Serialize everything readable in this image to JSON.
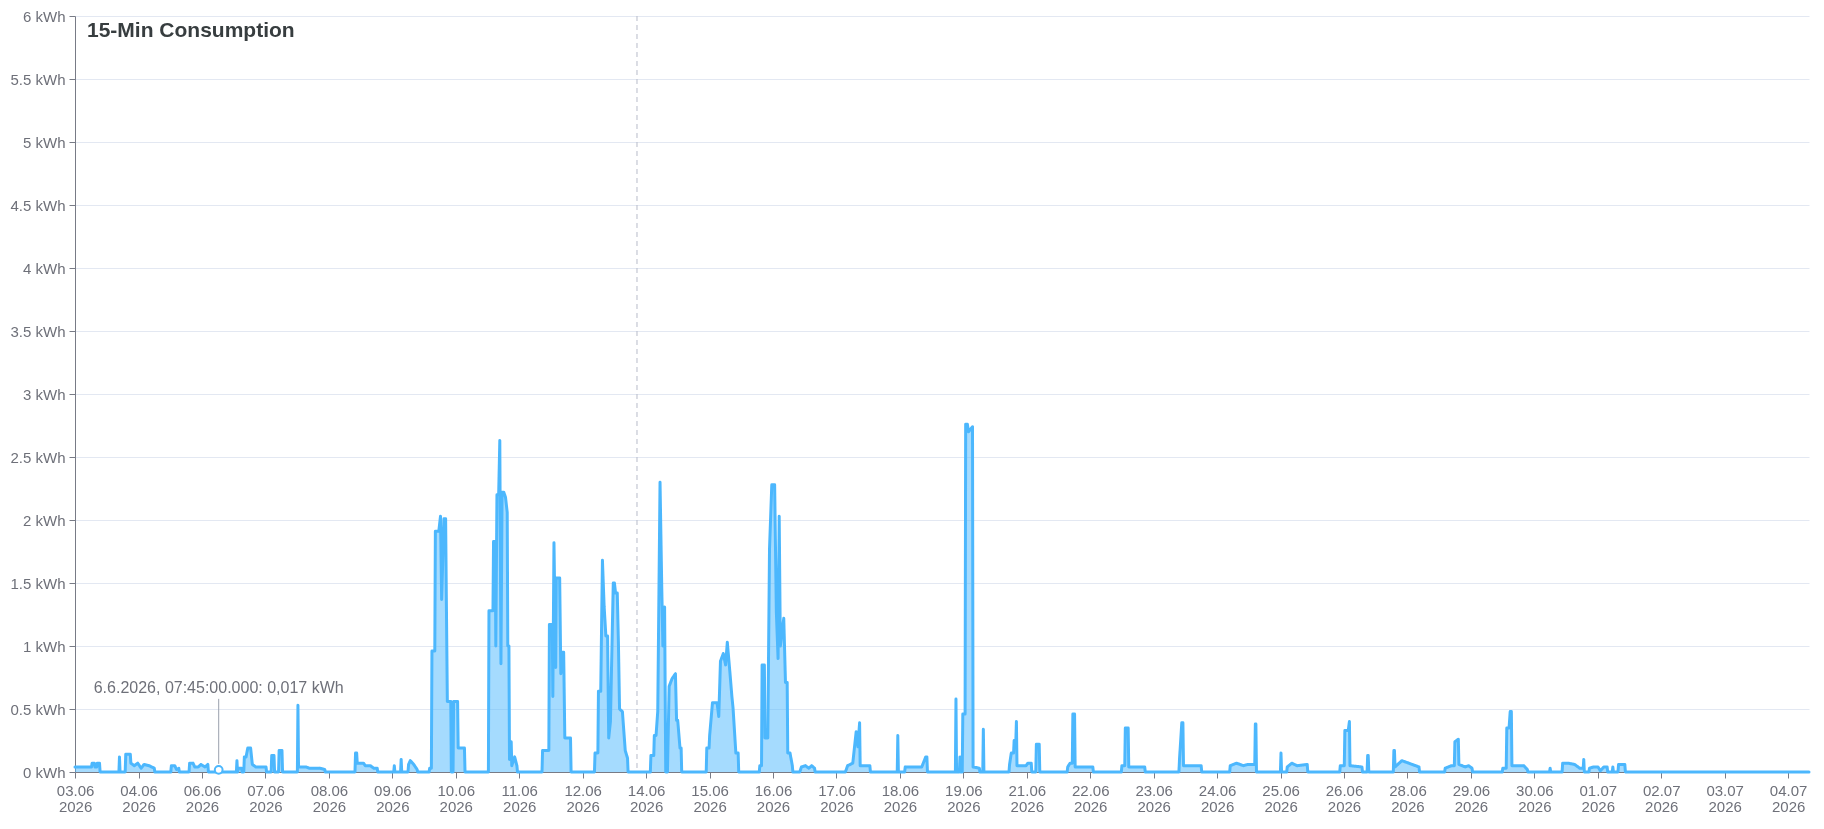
{
  "chart_data": {
    "type": "area",
    "title": "15-Min Consumption",
    "xlim": [
      "2026-06-03T16:45",
      "2026-07-05T09:00"
    ],
    "xticks": [
      {
        "value": "2026-06-03T16:48",
        "label": "03.06\n2026"
      },
      {
        "value": "2026-06-04T20:37",
        "label": "04.06\n2026"
      },
      {
        "value": "2026-06-06T00:26",
        "label": "06.06\n2026"
      },
      {
        "value": "2026-06-07T04:15",
        "label": "07.06\n2026"
      },
      {
        "value": "2026-06-08T08:04",
        "label": "08.06\n2026"
      },
      {
        "value": "2026-06-09T11:53",
        "label": "09.06\n2026"
      },
      {
        "value": "2026-06-10T15:42",
        "label": "10.06\n2026"
      },
      {
        "value": "2026-06-11T19:31",
        "label": "11.06\n2026"
      },
      {
        "value": "2026-06-12T23:20",
        "label": "12.06\n2026"
      },
      {
        "value": "2026-06-14T03:09",
        "label": "14.06\n2026"
      },
      {
        "value": "2026-06-15T06:58",
        "label": "15.06\n2026"
      },
      {
        "value": "2026-06-16T10:47",
        "label": "16.06\n2026"
      },
      {
        "value": "2026-06-17T14:36",
        "label": "17.06\n2026"
      },
      {
        "value": "2026-06-18T18:25",
        "label": "18.06\n2026"
      },
      {
        "value": "2026-06-19T22:14",
        "label": "19.06\n2026"
      },
      {
        "value": "2026-06-21T02:03",
        "label": "21.06\n2026"
      },
      {
        "value": "2026-06-22T05:52",
        "label": "22.06\n2026"
      },
      {
        "value": "2026-06-23T09:41",
        "label": "23.06\n2026"
      },
      {
        "value": "2026-06-24T13:30",
        "label": "24.06\n2026"
      },
      {
        "value": "2026-06-25T17:19",
        "label": "25.06\n2026"
      },
      {
        "value": "2026-06-26T21:08",
        "label": "26.06\n2026"
      },
      {
        "value": "2026-06-28T00:57",
        "label": "28.06\n2026"
      },
      {
        "value": "2026-06-29T04:46",
        "label": "29.06\n2026"
      },
      {
        "value": "2026-06-30T08:35",
        "label": "30.06\n2026"
      },
      {
        "value": "2026-07-01T12:24",
        "label": "01.07\n2026"
      },
      {
        "value": "2026-07-02T16:13",
        "label": "02.07\n2026"
      },
      {
        "value": "2026-07-03T20:02",
        "label": "03.07\n2026"
      },
      {
        "value": "2026-07-04T23:51",
        "label": "04.07\n2026"
      }
    ],
    "ylim": [
      0,
      6
    ],
    "yticks": [
      {
        "value": 0,
        "label": "0 kWh"
      },
      {
        "value": 0.5,
        "label": "0.5 kWh"
      },
      {
        "value": 1,
        "label": "1 kWh"
      },
      {
        "value": 1.5,
        "label": "1.5 kWh"
      },
      {
        "value": 2,
        "label": "2 kWh"
      },
      {
        "value": 2.5,
        "label": "2.5 kWh"
      },
      {
        "value": 3,
        "label": "3 kWh"
      },
      {
        "value": 3.5,
        "label": "3.5 kWh"
      },
      {
        "value": 4,
        "label": "4 kWh"
      },
      {
        "value": 4.5,
        "label": "4.5 kWh"
      },
      {
        "value": 5,
        "label": "5 kWh"
      },
      {
        "value": 5.5,
        "label": "5.5 kWh"
      },
      {
        "value": 6,
        "label": "6 kWh"
      }
    ],
    "grid": "y",
    "ref_lines": [
      {
        "axis": "x",
        "value": "2026-06-13T23:09",
        "color": "#b8bbc9",
        "line_style": "dashed"
      }
    ],
    "annotations": [
      {
        "text": "6.6.2026, 07:45:00.000: 0,017 kWh",
        "x": "2026-06-06T07:45",
        "y": 0.017
      }
    ],
    "x": [
      "2026-06-03T16:45",
      "2026-06-04T00:00",
      "2026-06-04T00:15",
      "2026-06-04T01:15",
      "2026-06-04T01:30",
      "2026-06-04T02:15",
      "2026-06-04T02:30",
      "2026-06-04T03:30",
      "2026-06-04T03:45",
      "2026-06-04T12:00",
      "2026-06-04T12:15",
      "2026-06-04T12:30",
      "2026-06-04T14:45",
      "2026-06-04T15:00",
      "2026-06-04T17:00",
      "2026-06-04T17:15",
      "2026-06-04T18:45",
      "2026-06-04T20:15",
      "2026-06-04T21:45",
      "2026-06-04T23:00",
      "2026-06-05T01:15",
      "2026-06-05T03:30",
      "2026-06-05T03:45",
      "2026-06-05T10:45",
      "2026-06-05T11:00",
      "2026-06-05T12:30",
      "2026-06-05T13:15",
      "2026-06-05T14:15",
      "2026-06-05T14:30",
      "2026-06-05T18:45",
      "2026-06-05T19:00",
      "2026-06-05T20:30",
      "2026-06-05T21:15",
      "2026-06-05T22:45",
      "2026-06-06T00:00",
      "2026-06-06T01:45",
      "2026-06-06T03:00",
      "2026-06-06T03:15",
      "2026-06-06T07:30",
      "2026-06-06T07:45",
      "2026-06-06T08:00",
      "2026-06-06T15:30",
      "2026-06-06T15:45",
      "2026-06-06T16:00",
      "2026-06-06T16:30",
      "2026-06-06T17:45",
      "2026-06-06T18:00",
      "2026-06-06T18:45",
      "2026-06-06T19:00",
      "2026-06-06T19:45",
      "2026-06-06T20:30",
      "2026-06-06T21:45",
      "2026-06-06T22:30",
      "2026-06-07T00:00",
      "2026-06-07T04:30",
      "2026-06-07T04:45",
      "2026-06-07T06:45",
      "2026-06-07T07:00",
      "2026-06-07T08:00",
      "2026-06-07T08:15",
      "2026-06-07T10:00",
      "2026-06-07T10:15",
      "2026-06-07T11:30",
      "2026-06-07T11:45",
      "2026-06-07T18:15",
      "2026-06-07T18:30",
      "2026-06-07T18:45",
      "2026-06-07T22:00",
      "2026-06-07T23:30",
      "2026-06-08T04:00",
      "2026-06-08T06:15",
      "2026-06-08T06:30",
      "2026-06-08T19:30",
      "2026-06-08T19:45",
      "2026-06-08T20:15",
      "2026-06-08T20:30",
      "2026-06-08T23:15",
      "2026-06-09T00:00",
      "2026-06-09T02:15",
      "2026-06-09T03:45",
      "2026-06-09T05:15",
      "2026-06-09T05:30",
      "2026-06-09T12:30",
      "2026-06-09T12:45",
      "2026-06-09T13:00",
      "2026-06-09T15:30",
      "2026-06-09T15:45",
      "2026-06-09T16:00",
      "2026-06-09T18:45",
      "2026-06-09T19:00",
      "2026-06-09T19:45",
      "2026-06-09T21:15",
      "2026-06-09T22:45",
      "2026-06-09T23:00",
      "2026-06-10T04:00",
      "2026-06-10T04:15",
      "2026-06-10T05:00",
      "2026-06-10T05:15",
      "2026-06-10T06:30",
      "2026-06-10T06:45",
      "2026-06-10T08:15",
      "2026-06-10T09:00",
      "2026-06-10T09:30",
      "2026-06-10T10:30",
      "2026-06-10T11:15",
      "2026-06-10T11:30",
      "2026-06-10T12:00",
      "2026-06-10T13:30",
      "2026-06-10T13:45",
      "2026-06-10T14:30",
      "2026-06-10T14:45",
      "2026-06-10T16:30",
      "2026-06-10T16:45",
      "2026-06-10T19:30",
      "2026-06-10T19:45",
      "2026-06-11T06:00",
      "2026-06-11T06:15",
      "2026-06-11T08:00",
      "2026-06-11T08:15",
      "2026-06-11T09:00",
      "2026-06-11T09:15",
      "2026-06-11T09:45",
      "2026-06-11T10:30",
      "2026-06-11T11:00",
      "2026-06-11T11:30",
      "2026-06-11T12:00",
      "2026-06-11T12:45",
      "2026-06-11T13:30",
      "2026-06-11T14:15",
      "2026-06-11T14:30",
      "2026-06-11T15:00",
      "2026-06-11T15:15",
      "2026-06-11T16:00",
      "2026-06-11T16:15",
      "2026-06-11T17:30",
      "2026-06-11T18:30",
      "2026-06-11T18:45",
      "2026-06-12T05:30",
      "2026-06-12T05:45",
      "2026-06-12T08:30",
      "2026-06-12T08:45",
      "2026-06-12T10:00",
      "2026-06-12T10:15",
      "2026-06-12T10:45",
      "2026-06-12T11:30",
      "2026-06-12T11:45",
      "2026-06-12T13:15",
      "2026-06-12T13:45",
      "2026-06-12T14:30",
      "2026-06-12T15:00",
      "2026-06-12T15:30",
      "2026-06-12T18:00",
      "2026-06-12T18:15",
      "2026-06-13T04:30",
      "2026-06-13T04:45",
      "2026-06-13T06:00",
      "2026-06-13T06:15",
      "2026-06-13T07:15",
      "2026-06-13T08:00",
      "2026-06-13T08:45",
      "2026-06-13T09:30",
      "2026-06-13T10:15",
      "2026-06-13T10:45",
      "2026-06-13T11:30",
      "2026-06-13T12:45",
      "2026-06-13T13:15",
      "2026-06-13T13:45",
      "2026-06-13T14:30",
      "2026-06-13T15:00",
      "2026-06-13T15:30",
      "2026-06-13T16:45",
      "2026-06-13T18:00",
      "2026-06-13T19:00",
      "2026-06-13T19:15",
      "2026-06-14T05:00",
      "2026-06-14T05:15",
      "2026-06-14T06:30",
      "2026-06-14T06:45",
      "2026-06-14T07:30",
      "2026-06-14T08:15",
      "2026-06-14T09:15",
      "2026-06-14T10:00",
      "2026-06-14T10:30",
      "2026-06-14T11:15",
      "2026-06-14T11:45",
      "2026-06-14T12:30",
      "2026-06-14T13:15",
      "2026-06-14T14:30",
      "2026-06-14T16:00",
      "2026-06-14T16:30",
      "2026-06-14T17:00",
      "2026-06-14T18:00",
      "2026-06-14T18:30",
      "2026-06-14T18:45",
      "2026-06-15T05:30",
      "2026-06-15T05:45",
      "2026-06-15T06:45",
      "2026-06-15T07:00",
      "2026-06-15T08:15",
      "2026-06-15T10:15",
      "2026-06-15T11:00",
      "2026-06-15T11:45",
      "2026-06-15T13:00",
      "2026-06-15T14:00",
      "2026-06-15T14:45",
      "2026-06-15T15:45",
      "2026-06-15T16:45",
      "2026-06-15T17:15",
      "2026-06-15T18:30",
      "2026-06-15T19:30",
      "2026-06-15T19:45",
      "2026-06-16T04:45",
      "2026-06-16T05:00",
      "2026-06-16T05:45",
      "2026-06-16T06:00",
      "2026-06-16T07:00",
      "2026-06-16T07:15",
      "2026-06-16T08:30",
      "2026-06-16T09:15",
      "2026-06-16T10:15",
      "2026-06-16T11:30",
      "2026-06-16T12:15",
      "2026-06-16T13:00",
      "2026-06-16T13:30",
      "2026-06-16T14:00",
      "2026-06-16T14:30",
      "2026-06-16T15:30",
      "2026-06-16T16:15",
      "2026-06-16T17:00",
      "2026-06-16T17:15",
      "2026-06-16T18:15",
      "2026-06-16T19:15",
      "2026-06-16T19:30",
      "2026-06-16T22:30",
      "2026-06-16T23:15",
      "2026-06-17T01:00",
      "2026-06-17T02:30",
      "2026-06-17T03:45",
      "2026-06-17T05:00",
      "2026-06-17T05:15",
      "2026-06-17T18:30",
      "2026-06-17T19:30",
      "2026-06-17T21:45",
      "2026-06-17T23:15",
      "2026-06-18T00:00",
      "2026-06-18T00:45",
      "2026-06-18T01:00",
      "2026-06-18T05:15",
      "2026-06-18T05:30",
      "2026-06-18T17:15",
      "2026-06-18T17:30",
      "2026-06-18T17:45",
      "2026-06-18T20:30",
      "2026-06-18T20:45",
      "2026-06-19T04:00",
      "2026-06-19T05:45",
      "2026-06-19T06:15",
      "2026-06-19T06:30",
      "2026-06-19T18:45",
      "2026-06-19T19:00",
      "2026-06-19T19:15",
      "2026-06-19T20:30",
      "2026-06-19T20:45",
      "2026-06-19T21:00",
      "2026-06-19T21:45",
      "2026-06-19T22:00",
      "2026-06-19T23:00",
      "2026-06-19T23:15",
      "2026-06-20T00:00",
      "2026-06-20T00:30",
      "2026-06-20T02:15",
      "2026-06-20T02:30",
      "2026-06-20T05:15",
      "2026-06-20T05:30",
      "2026-06-20T06:45",
      "2026-06-20T07:00",
      "2026-06-20T07:15",
      "2026-06-20T18:15",
      "2026-06-20T18:30",
      "2026-06-20T19:15",
      "2026-06-20T20:15",
      "2026-06-20T20:30",
      "2026-06-20T21:15",
      "2026-06-20T21:30",
      "2026-06-20T21:45",
      "2026-06-21T01:45",
      "2026-06-21T02:30",
      "2026-06-21T04:00",
      "2026-06-21T04:15",
      "2026-06-21T06:00",
      "2026-06-21T06:15",
      "2026-06-21T07:30",
      "2026-06-21T07:45",
      "2026-06-21T19:45",
      "2026-06-21T20:00",
      "2026-06-21T21:00",
      "2026-06-21T22:00",
      "2026-06-21T22:15",
      "2026-06-21T23:00",
      "2026-06-21T23:15",
      "2026-06-22T07:00",
      "2026-06-22T07:15",
      "2026-06-22T19:30",
      "2026-06-22T19:45",
      "2026-06-22T21:00",
      "2026-06-22T21:15",
      "2026-06-22T22:30",
      "2026-06-22T22:45",
      "2026-06-23T05:45",
      "2026-06-23T06:00",
      "2026-06-23T20:45",
      "2026-06-23T21:00",
      "2026-06-23T22:00",
      "2026-06-23T22:30",
      "2026-06-23T22:45",
      "2026-06-24T06:30",
      "2026-06-24T06:45",
      "2026-06-24T19:00",
      "2026-06-24T19:15",
      "2026-06-24T22:00",
      "2026-06-25T01:00",
      "2026-06-25T03:00",
      "2026-06-25T06:00",
      "2026-06-25T06:15",
      "2026-06-25T06:30",
      "2026-06-25T06:45",
      "2026-06-25T17:15",
      "2026-06-25T17:30",
      "2026-06-25T17:45",
      "2026-06-25T20:00",
      "2026-06-25T20:15",
      "2026-06-25T22:15",
      "2026-06-26T00:30",
      "2026-06-26T05:00",
      "2026-06-26T05:15",
      "2026-06-26T19:15",
      "2026-06-26T19:30",
      "2026-06-26T21:15",
      "2026-06-26T21:30",
      "2026-06-26T23:00",
      "2026-06-26T23:30",
      "2026-06-26T23:45",
      "2026-06-27T05:00",
      "2026-06-27T05:15",
      "2026-06-27T07:15",
      "2026-06-27T07:30",
      "2026-06-27T07:45",
      "2026-06-27T08:00",
      "2026-06-27T18:45",
      "2026-06-27T19:00",
      "2026-06-27T19:15",
      "2026-06-27T19:30",
      "2026-06-27T22:30",
      "2026-06-28T01:30",
      "2026-06-28T06:00",
      "2026-06-28T06:15",
      "2026-06-28T17:15",
      "2026-06-28T17:30",
      "2026-06-28T20:15",
      "2026-06-28T21:30",
      "2026-06-28T21:45",
      "2026-06-28T23:15",
      "2026-06-28T23:30",
      "2026-06-29T02:15",
      "2026-06-29T03:45",
      "2026-06-29T05:15",
      "2026-06-29T05:30",
      "2026-06-29T18:30",
      "2026-06-29T18:45",
      "2026-06-29T20:15",
      "2026-06-29T20:30",
      "2026-06-29T21:30",
      "2026-06-29T22:00",
      "2026-06-29T22:30",
      "2026-06-29T22:45",
      "2026-06-30T04:00",
      "2026-06-30T05:30",
      "2026-06-30T05:45",
      "2026-06-30T15:15",
      "2026-06-30T15:30",
      "2026-06-30T15:45",
      "2026-06-30T20:45",
      "2026-06-30T21:00",
      "2026-06-30T23:15",
      "2026-07-01T02:15",
      "2026-07-01T04:30",
      "2026-07-01T06:00",
      "2026-07-01T06:15",
      "2026-07-01T06:30",
      "2026-07-01T08:30",
      "2026-07-01T08:45",
      "2026-07-01T10:30",
      "2026-07-01T12:30",
      "2026-07-01T13:30",
      "2026-07-01T15:00",
      "2026-07-01T16:30",
      "2026-07-01T16:45",
      "2026-07-01T18:45",
      "2026-07-01T19:00",
      "2026-07-01T19:15",
      "2026-07-01T21:15",
      "2026-07-01T21:30",
      "2026-07-02T00:15",
      "2026-07-02T00:30",
      "2026-07-05T09:00"
    ],
    "series": [
      {
        "color": "#4cb7fd",
        "values": [
          0.04,
          0.04,
          0.07,
          0.07,
          0.04,
          0.04,
          0.07,
          0.07,
          0,
          0,
          0.12,
          0,
          0,
          0.14,
          0.14,
          0.07,
          0.05,
          0.07,
          0.03,
          0.06,
          0.05,
          0.03,
          0,
          0,
          0.05,
          0.05,
          0.02,
          0.03,
          0,
          0,
          0.07,
          0.07,
          0.04,
          0.04,
          0.06,
          0.04,
          0.06,
          0,
          0,
          0.017,
          0,
          0,
          0.09,
          0,
          0.03,
          0.03,
          0,
          0,
          0.12,
          0.12,
          0.19,
          0.19,
          0.06,
          0.04,
          0.04,
          0,
          0,
          0.13,
          0.13,
          0,
          0,
          0.17,
          0.17,
          0,
          0,
          0.53,
          0.04,
          0.04,
          0.03,
          0.03,
          0.02,
          0,
          0,
          0.15,
          0.15,
          0.07,
          0.07,
          0.05,
          0.05,
          0.03,
          0.03,
          0,
          0,
          0.05,
          0,
          0,
          0.1,
          0,
          0,
          0.06,
          0.09,
          0.06,
          0.02,
          0,
          0,
          0.03,
          0.03,
          0.96,
          0.96,
          1.91,
          1.91,
          2.03,
          1.37,
          2.01,
          2.01,
          1.49,
          0.56,
          0.56,
          0,
          0,
          0.56,
          0.56,
          0.19,
          0.19,
          0,
          0,
          1.28,
          1.28,
          1.83,
          1.83,
          1.0,
          2.2,
          2.2,
          2.63,
          0.86,
          2.22,
          2.22,
          2.18,
          2.06,
          1.0,
          1.0,
          0.1,
          0.24,
          0.05,
          0.12,
          0.05,
          0,
          0,
          0.17,
          0.17,
          1.17,
          1.17,
          0.6,
          1.82,
          0.83,
          1.54,
          1.54,
          0.78,
          0.95,
          0.95,
          0.27,
          0.27,
          0,
          0,
          0.15,
          0.15,
          0.64,
          0.64,
          1.68,
          1.31,
          1.08,
          1.08,
          0.27,
          0.4,
          1.5,
          1.5,
          1.42,
          1.42,
          1.03,
          0.5,
          0.48,
          0.17,
          0.11,
          0,
          0,
          0.13,
          0.13,
          0.29,
          0.29,
          0.48,
          2.3,
          1.47,
          1.0,
          1.31,
          0,
          0,
          0.68,
          0.74,
          0.78,
          0.41,
          0.41,
          0.19,
          0.19,
          0,
          0,
          0.19,
          0.19,
          0.29,
          0.55,
          0.55,
          0.44,
          0.88,
          0.94,
          0.85,
          1.03,
          0.82,
          0.6,
          0.51,
          0.15,
          0.15,
          0,
          0,
          0.05,
          0.05,
          0.85,
          0.85,
          0.27,
          0.27,
          1.77,
          2.28,
          2.28,
          1.27,
          0.9,
          2.03,
          1.0,
          1.07,
          1.22,
          0.71,
          0.71,
          0.15,
          0.15,
          0.05,
          0,
          0,
          0.04,
          0.05,
          0.03,
          0.05,
          0.03,
          0,
          0,
          0.05,
          0.07,
          0.32,
          0.2,
          0.39,
          0.05,
          0.05,
          0,
          0,
          0.29,
          0,
          0,
          0.04,
          0.04,
          0.12,
          0.12,
          0,
          0,
          0.58,
          0,
          0,
          0.12,
          0,
          0,
          0.46,
          0.46,
          2.76,
          2.76,
          2.7,
          2.74,
          0.04,
          0.03,
          0,
          0,
          0.34,
          0,
          0,
          0.06,
          0.15,
          0.15,
          0.25,
          0.25,
          0.4,
          0.05,
          0.05,
          0.07,
          0.07,
          0,
          0,
          0.22,
          0.22,
          0,
          0,
          0.04,
          0.07,
          0.07,
          0.46,
          0.46,
          0.04,
          0.04,
          0,
          0,
          0.05,
          0.05,
          0.35,
          0.35,
          0.04,
          0.04,
          0,
          0,
          0.1,
          0.39,
          0.39,
          0.05,
          0.05,
          0,
          0,
          0.05,
          0.07,
          0.05,
          0.06,
          0.06,
          0.38,
          0.38,
          0,
          0,
          0.15,
          0,
          0,
          0.04,
          0.07,
          0.05,
          0.06,
          0,
          0,
          0.05,
          0.05,
          0.33,
          0.33,
          0.4,
          0.05,
          0.04,
          0,
          0,
          0.13,
          0.13,
          0,
          0,
          0.17,
          0.17,
          0.04,
          0.09,
          0.07,
          0.04,
          0,
          0,
          0.03,
          0.05,
          0.05,
          0.24,
          0.26,
          0.06,
          0.04,
          0.05,
          0.03,
          0,
          0,
          0.03,
          0.03,
          0.35,
          0.35,
          0.48,
          0.48,
          0.05,
          0.05,
          0.02,
          0,
          0,
          0.03,
          0,
          0,
          0.07,
          0.07,
          0.06,
          0.03,
          0.03,
          0.1,
          0,
          0,
          0.03,
          0.04,
          0.04,
          0.01,
          0.04,
          0.04,
          0,
          0,
          0.04,
          0,
          0,
          0.06,
          0.06,
          0,
          0
        ]
      }
    ]
  }
}
